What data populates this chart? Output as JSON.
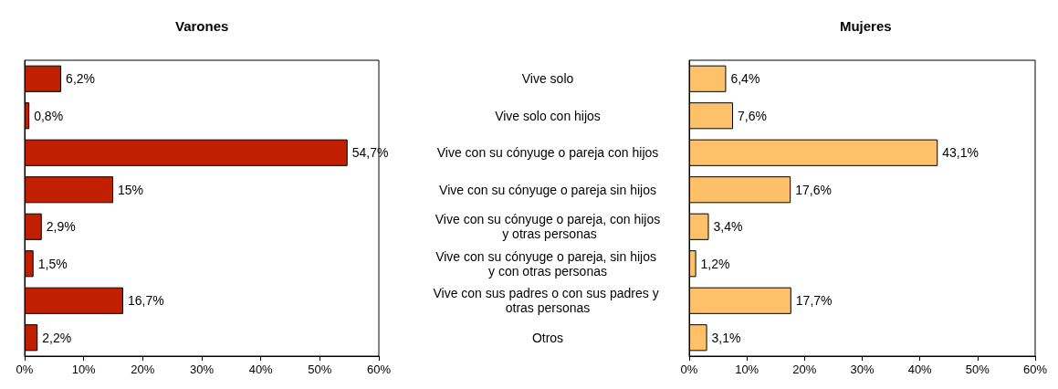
{
  "chart_data": [
    {
      "type": "bar",
      "orientation": "horizontal",
      "title": "Varones",
      "categories": [
        null,
        null,
        null,
        null,
        null,
        null,
        null,
        null
      ],
      "values": [
        6.2,
        0.8,
        54.7,
        15,
        2.9,
        1.5,
        16.7,
        2.2
      ],
      "value_labels": [
        "6,2%",
        "0,8%",
        "54,7%",
        "15%",
        "2,9%",
        "1,5%",
        "16,7%",
        "2,2%"
      ],
      "color": "#c02000",
      "xlim": [
        0,
        60
      ],
      "xticks": [
        {
          "value": 0,
          "label": "0%"
        },
        {
          "value": 10,
          "label": "10%"
        },
        {
          "value": 20,
          "label": "20%"
        },
        {
          "value": 30,
          "label": "30%"
        },
        {
          "value": 40,
          "label": "40%"
        },
        {
          "value": 50,
          "label": "50%"
        },
        {
          "value": 60,
          "label": "60%"
        }
      ]
    },
    {
      "type": "bar",
      "orientation": "horizontal",
      "title": "Mujeres",
      "categories": [
        "Vive solo",
        "Vive solo con hijos",
        "Vive con su cónyuge o pareja con hijos",
        "Vive con su cónyuge o pareja sin hijos",
        "Vive con su cónyuge o pareja, con hijos y otras personas",
        "Vive con su cónyuge o pareja, sin hijos y con otras personas",
        "Vive con sus padres o con sus padres y otras personas",
        "Otros"
      ],
      "values": [
        6.4,
        7.6,
        43.1,
        17.6,
        3.4,
        1.2,
        17.7,
        3.1
      ],
      "value_labels": [
        "6,4%",
        "7,6%",
        "43,1%",
        "17,6%",
        "3,4%",
        "1,2%",
        "17,7%",
        "3,1%"
      ],
      "color": "#ffc06a",
      "xlim": [
        0,
        60
      ],
      "xticks": [
        {
          "value": 0,
          "label": "0%"
        },
        {
          "value": 10,
          "label": "10%"
        },
        {
          "value": 20,
          "label": "20%"
        },
        {
          "value": 30,
          "label": "30%"
        },
        {
          "value": 40,
          "label": "40%"
        },
        {
          "value": 50,
          "label": "50%"
        },
        {
          "value": 60,
          "label": "60%"
        }
      ]
    }
  ]
}
